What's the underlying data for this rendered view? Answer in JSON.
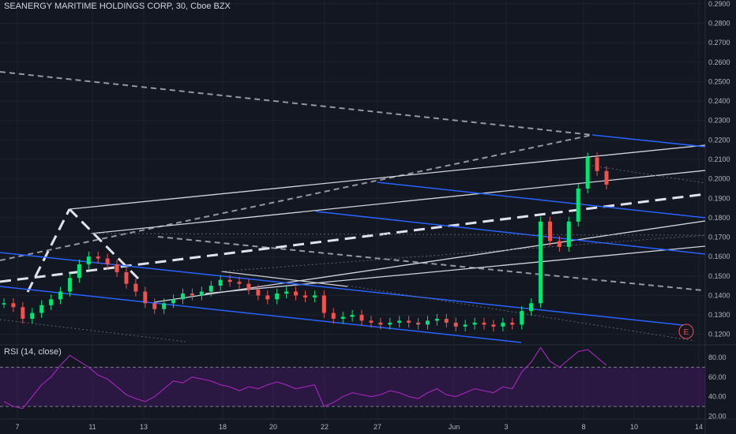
{
  "header": {
    "title": "SEANERGY MARITIME HOLDINGS CORP, 30, Cboe BZX"
  },
  "rsi": {
    "label": "RSI (14, close)"
  },
  "earnings_badge": "E",
  "colors": {
    "background": "#131722",
    "up_candle": "#26a69a",
    "up_candle_bright": "#00e676",
    "down_candle": "#ef5350",
    "channel_blue": "#2962ff",
    "trendline_white": "#d1d4dc",
    "rsi_line": "#9c27b0",
    "rsi_band": "#4a1a6b"
  },
  "chart_data": [
    {
      "type": "line",
      "title": "SEANERGY MARITIME HOLDINGS CORP, 30, Cboe BZX",
      "xlabel": "",
      "ylabel": "",
      "x_ticks": [
        "7",
        "11",
        "13",
        "18",
        "20",
        "22",
        "27",
        "Jun",
        "3",
        "8",
        "10",
        "14"
      ],
      "y_ticks": [
        "0.2900",
        "0.2800",
        "0.2700",
        "0.2600",
        "0.2500",
        "0.2400",
        "0.2300",
        "0.2200",
        "0.2100",
        "0.2000",
        "0.1900",
        "0.1800",
        "0.1700",
        "0.1600",
        "0.1500",
        "0.1400",
        "0.1300",
        "0.1200"
      ],
      "ylim": [
        0.115,
        0.292
      ],
      "grid": true,
      "series": [
        {
          "values": [
            0.136,
            0.134,
            0.128,
            0.131,
            0.135,
            0.138,
            0.142,
            0.149,
            0.156,
            0.16,
            0.159,
            0.156,
            0.152,
            0.146,
            0.142,
            0.136,
            0.133,
            0.136,
            0.138,
            0.141,
            0.14,
            0.142,
            0.145,
            0.148,
            0.147,
            0.146,
            0.143,
            0.14,
            0.138,
            0.141,
            0.142,
            0.14,
            0.139,
            0.14,
            0.131,
            0.128,
            0.129,
            0.13,
            0.127,
            0.126,
            0.125,
            0.126,
            0.127,
            0.126,
            0.125,
            0.127,
            0.128,
            0.126,
            0.124,
            0.125,
            0.126,
            0.125,
            0.124,
            0.126,
            0.125,
            0.132,
            0.136,
            0.178,
            0.168,
            0.165,
            0.178,
            0.195,
            0.211,
            0.204,
            0.197
          ]
        }
      ]
    },
    {
      "type": "line",
      "title": "RSI (14, close)",
      "xlabel": "",
      "ylabel": "",
      "y_ticks": [
        "80.00",
        "60.00",
        "40.00",
        "20.00"
      ],
      "ylim": [
        18,
        92
      ],
      "reference_lines": [
        70,
        30
      ],
      "series": [
        {
          "values": [
            35,
            30,
            28,
            40,
            52,
            60,
            72,
            82,
            76,
            70,
            62,
            58,
            50,
            42,
            38,
            35,
            40,
            48,
            56,
            54,
            60,
            58,
            56,
            52,
            50,
            46,
            50,
            48,
            52,
            55,
            52,
            48,
            50,
            52,
            30,
            34,
            40,
            44,
            42,
            40,
            42,
            46,
            44,
            40,
            38,
            44,
            48,
            42,
            40,
            44,
            48,
            46,
            44,
            50,
            48,
            65,
            75,
            90,
            76,
            70,
            78,
            86,
            88,
            80,
            72
          ]
        }
      ]
    }
  ]
}
